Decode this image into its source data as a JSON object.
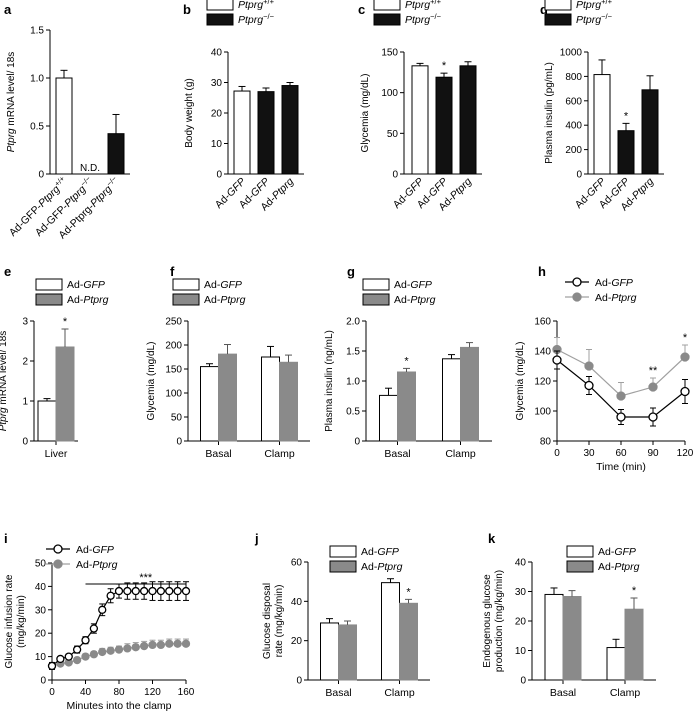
{
  "colors": {
    "white_bar": "#ffffff",
    "black_bar": "#111111",
    "grey_bar": "#8a8a8a",
    "grey_line": "#a0a0a0",
    "axis": "#000000"
  },
  "chart_data": [
    {
      "panel": "a",
      "type": "bar",
      "ylabel_italic": "Ptprg",
      "ylabel_rest": " mRNA level/ 18s",
      "ylim": [
        0,
        1.5
      ],
      "yticks": [
        "0",
        "0.5",
        "1.0",
        "1.5"
      ],
      "ytick_values": [
        0,
        0.5,
        1.0,
        1.5
      ],
      "categories": [
        {
          "base": "Ad-GFP-",
          "italic": "Ptprg",
          "sup": "+/+"
        },
        {
          "base": "Ad-GFP-",
          "italic": "Ptprg",
          "sup": "−/−"
        },
        {
          "base": "Ad-Ptprg-",
          "italic": "Ptprg",
          "sup": "−/−"
        }
      ],
      "values": [
        1.0,
        0,
        0.42
      ],
      "errors": [
        0.08,
        0,
        0.2
      ],
      "fills": [
        "white",
        "none",
        "black"
      ],
      "annotations": [
        {
          "index": 1,
          "text": "N.D."
        }
      ],
      "legend": []
    },
    {
      "panel": "b",
      "type": "bar",
      "ylabel": "Body weight (g)",
      "ylim": [
        0,
        40
      ],
      "yticks": [
        "0",
        "10",
        "20",
        "30",
        "40"
      ],
      "ytick_values": [
        0,
        10,
        20,
        30,
        40
      ],
      "categories": [
        {
          "base": "Ad-",
          "italic": "GFP"
        },
        {
          "base": "Ad-",
          "italic": "GFP"
        },
        {
          "base": "Ad-",
          "italic": "Ptprg"
        }
      ],
      "values": [
        27.2,
        27,
        29
      ],
      "errors": [
        1.5,
        1.2,
        1.0
      ],
      "fills": [
        "white",
        "black",
        "black"
      ],
      "stars": [
        "",
        "",
        ""
      ],
      "legend": [
        {
          "label": "Ptprg",
          "sup": "+/+",
          "fill": "white"
        },
        {
          "label": "Ptprg",
          "sup": "−/−",
          "fill": "black"
        }
      ]
    },
    {
      "panel": "c",
      "type": "bar",
      "ylabel": "Glycemia (mg/dL)",
      "ylim": [
        0,
        150
      ],
      "yticks": [
        "0",
        "50",
        "100",
        "150"
      ],
      "ytick_values": [
        0,
        50,
        100,
        150
      ],
      "categories": [
        {
          "base": "Ad-",
          "italic": "GFP"
        },
        {
          "base": "Ad-",
          "italic": "GFP"
        },
        {
          "base": "Ad-",
          "italic": "Ptprg"
        }
      ],
      "values": [
        133,
        119,
        133
      ],
      "errors": [
        3,
        5,
        5
      ],
      "fills": [
        "white",
        "black",
        "black"
      ],
      "stars": [
        "",
        "*",
        ""
      ],
      "legend": [
        {
          "label": "Ptprg",
          "sup": "+/+",
          "fill": "white"
        },
        {
          "label": "Ptprg",
          "sup": "−/−",
          "fill": "black"
        }
      ]
    },
    {
      "panel": "d",
      "type": "bar",
      "ylabel": "Plasma insulin (pg/mL)",
      "ylim": [
        0,
        1000
      ],
      "yticks": [
        "0",
        "200",
        "400",
        "600",
        "800",
        "1000"
      ],
      "ytick_values": [
        0,
        200,
        400,
        600,
        800,
        1000
      ],
      "categories": [
        {
          "base": "Ad-",
          "italic": "GFP"
        },
        {
          "base": "Ad-",
          "italic": "GFP"
        },
        {
          "base": "Ad-",
          "italic": "Ptprg"
        }
      ],
      "values": [
        815,
        355,
        690
      ],
      "errors": [
        120,
        60,
        115
      ],
      "fills": [
        "white",
        "black",
        "black"
      ],
      "stars": [
        "",
        "*",
        ""
      ],
      "legend": [
        {
          "label": "Ptprg",
          "sup": "+/+",
          "fill": "white"
        },
        {
          "label": "Ptprg",
          "sup": "−/−",
          "fill": "black"
        }
      ]
    },
    {
      "panel": "e",
      "type": "bar",
      "ylabel_italic": "Ptprg",
      "ylabel_rest": " mRNA level/ 18s",
      "ylim": [
        0,
        3
      ],
      "yticks": [
        "0",
        "1",
        "2",
        "3"
      ],
      "ytick_values": [
        0,
        1,
        2,
        3
      ],
      "groups": [
        "Liver"
      ],
      "series": [
        {
          "name": "Ad-GFP",
          "values": [
            1.0
          ],
          "errors": [
            0.06
          ],
          "fill": "white"
        },
        {
          "name": "Ad-Ptprg",
          "values": [
            2.35
          ],
          "errors": [
            0.45
          ],
          "fill": "grey"
        }
      ],
      "stars": [
        [
          "",
          "*"
        ]
      ],
      "legend": [
        {
          "base": "Ad-",
          "italic": "GFP",
          "fill": "white"
        },
        {
          "base": "Ad-",
          "italic": "Ptprg",
          "fill": "grey"
        }
      ]
    },
    {
      "panel": "f",
      "type": "bar",
      "ylabel": "Glycemia (mg/dL)",
      "ylim": [
        0,
        250
      ],
      "yticks": [
        "0",
        "50",
        "100",
        "150",
        "200",
        "250"
      ],
      "ytick_values": [
        0,
        50,
        100,
        150,
        200,
        250
      ],
      "groups": [
        "Basal",
        "Clamp"
      ],
      "series": [
        {
          "name": "Ad-GFP",
          "values": [
            155,
            175
          ],
          "errors": [
            6,
            22
          ],
          "fill": "white"
        },
        {
          "name": "Ad-Ptprg",
          "values": [
            181,
            164
          ],
          "errors": [
            20,
            15
          ],
          "fill": "grey"
        }
      ],
      "stars": [
        [
          "",
          ""
        ],
        [
          "",
          ""
        ]
      ],
      "legend": [
        {
          "base": "Ad-",
          "italic": "GFP",
          "fill": "white"
        },
        {
          "base": "Ad-",
          "italic": "Ptprg",
          "fill": "grey"
        }
      ]
    },
    {
      "panel": "g",
      "type": "bar",
      "ylabel": "Plasma insulin (ng/mL)",
      "ylim": [
        0,
        2.0
      ],
      "yticks": [
        "0",
        "0.5",
        "1.0",
        "1.5",
        "2.0"
      ],
      "ytick_values": [
        0,
        0.5,
        1.0,
        1.5,
        2.0
      ],
      "groups": [
        "Basal",
        "Clamp"
      ],
      "series": [
        {
          "name": "Ad-GFP",
          "values": [
            0.76,
            1.37
          ],
          "errors": [
            0.12,
            0.07
          ],
          "fill": "white"
        },
        {
          "name": "Ad-Ptprg",
          "values": [
            1.15,
            1.56
          ],
          "errors": [
            0.06,
            0.08
          ],
          "fill": "grey"
        }
      ],
      "stars": [
        [
          "",
          "*"
        ],
        [
          "",
          ""
        ]
      ],
      "legend": [
        {
          "base": "Ad-",
          "italic": "GFP",
          "fill": "white"
        },
        {
          "base": "Ad-",
          "italic": "Ptprg",
          "fill": "grey"
        }
      ]
    },
    {
      "panel": "h",
      "type": "line",
      "ylabel": "Glycemia (mg/dL)",
      "xlabel": "Time (min)",
      "xlim": [
        0,
        120
      ],
      "xticks": [
        "0",
        "30",
        "60",
        "90",
        "120"
      ],
      "xtick_values": [
        0,
        30,
        60,
        90,
        120
      ],
      "ylim": [
        80,
        160
      ],
      "yticks": [
        "80",
        "100",
        "120",
        "140",
        "160"
      ],
      "ytick_values": [
        80,
        100,
        120,
        140,
        160
      ],
      "x": [
        0,
        30,
        60,
        90,
        120
      ],
      "series": [
        {
          "name": "Ad-GFP",
          "values": [
            134,
            117,
            96,
            96,
            113
          ],
          "errors": [
            6,
            6,
            5,
            6,
            8
          ],
          "style": "open"
        },
        {
          "name": "Ad-Ptprg",
          "values": [
            141,
            130,
            110,
            116,
            136
          ],
          "errors": [
            8,
            11,
            9,
            6,
            8
          ],
          "style": "grey"
        }
      ],
      "stars": [
        {
          "x": 90,
          "text": "**"
        },
        {
          "x": 120,
          "text": "*"
        }
      ],
      "legend": [
        {
          "base": "Ad-",
          "italic": "GFP",
          "style": "open"
        },
        {
          "base": "Ad-",
          "italic": "Ptprg",
          "style": "grey"
        }
      ]
    },
    {
      "panel": "i",
      "type": "line",
      "ylabel": "Glucose infusion rate\n(mg/kg/min)",
      "xlabel": "Minutes into the clamp",
      "xlim": [
        0,
        160
      ],
      "xticks": [
        "0",
        "40",
        "80",
        "120",
        "160"
      ],
      "xtick_values": [
        0,
        40,
        80,
        120,
        160
      ],
      "ylim": [
        0,
        50
      ],
      "yticks": [
        "0",
        "10",
        "20",
        "30",
        "40",
        "50"
      ],
      "ytick_values": [
        0,
        10,
        20,
        30,
        40,
        50
      ],
      "x": [
        0,
        10,
        20,
        30,
        40,
        50,
        60,
        70,
        80,
        90,
        100,
        110,
        120,
        130,
        140,
        150,
        160
      ],
      "series": [
        {
          "name": "Ad-GFP",
          "values": [
            6,
            9,
            10,
            13,
            17,
            22,
            30,
            36,
            38,
            38,
            38,
            38,
            38,
            38,
            38,
            38,
            38
          ],
          "errors": [
            1.5,
            1,
            1,
            1.5,
            1.5,
            2,
            2.5,
            3,
            3,
            3.5,
            3.5,
            3.5,
            4,
            4,
            4,
            4,
            4
          ],
          "style": "open"
        },
        {
          "name": "Ad-Ptprg",
          "values": [
            6,
            7,
            7.5,
            8.5,
            10,
            11,
            12,
            12.5,
            13,
            13.5,
            14,
            14.5,
            15,
            15,
            15.5,
            15.5,
            15.5
          ],
          "errors": [
            1,
            1,
            1,
            1,
            1.2,
            1.2,
            1.5,
            1.5,
            1.5,
            2,
            2,
            2,
            2,
            2,
            2,
            2,
            2
          ],
          "style": "grey"
        }
      ],
      "sigbar": {
        "x_from": 40,
        "x_to": 160,
        "text": "***"
      },
      "legend": [
        {
          "base": "Ad-",
          "italic": "GFP",
          "style": "open"
        },
        {
          "base": "Ad-",
          "italic": "Ptprg",
          "style": "grey"
        }
      ]
    },
    {
      "panel": "j",
      "type": "bar",
      "ylabel": "Glucose disposal\nrate (mg/kg/min)",
      "ylim": [
        0,
        60
      ],
      "yticks": [
        "0",
        "20",
        "40",
        "60"
      ],
      "ytick_values": [
        0,
        20,
        40,
        60
      ],
      "groups": [
        "Basal",
        "Clamp"
      ],
      "series": [
        {
          "name": "Ad-GFP",
          "values": [
            29,
            49.5
          ],
          "errors": [
            2.2,
            2
          ],
          "fill": "white"
        },
        {
          "name": "Ad-Ptprg",
          "values": [
            28,
            39
          ],
          "errors": [
            2,
            2
          ],
          "fill": "grey"
        }
      ],
      "stars": [
        [
          "",
          ""
        ],
        [
          "",
          "*"
        ]
      ],
      "legend": [
        {
          "base": "Ad-",
          "italic": "GFP",
          "fill": "white"
        },
        {
          "base": "Ad-",
          "italic": "Ptprg",
          "fill": "grey"
        }
      ]
    },
    {
      "panel": "k",
      "type": "bar",
      "ylabel": "Endogenous glucose\nproduction (mg/kg/min)",
      "ylim": [
        0,
        40
      ],
      "yticks": [
        "0",
        "10",
        "20",
        "30",
        "40"
      ],
      "ytick_values": [
        0,
        10,
        20,
        30,
        40
      ],
      "groups": [
        "Basal",
        "Clamp"
      ],
      "series": [
        {
          "name": "Ad-GFP",
          "values": [
            29,
            11
          ],
          "errors": [
            2.2,
            2.8
          ],
          "fill": "white"
        },
        {
          "name": "Ad-Ptprg",
          "values": [
            28.3,
            24
          ],
          "errors": [
            2,
            3.8
          ],
          "fill": "grey"
        }
      ],
      "stars": [
        [
          "",
          ""
        ],
        [
          "",
          "*"
        ]
      ],
      "legend": [
        {
          "base": "Ad-",
          "italic": "GFP",
          "fill": "white"
        },
        {
          "base": "Ad-",
          "italic": "Ptprg",
          "fill": "grey"
        }
      ]
    }
  ]
}
